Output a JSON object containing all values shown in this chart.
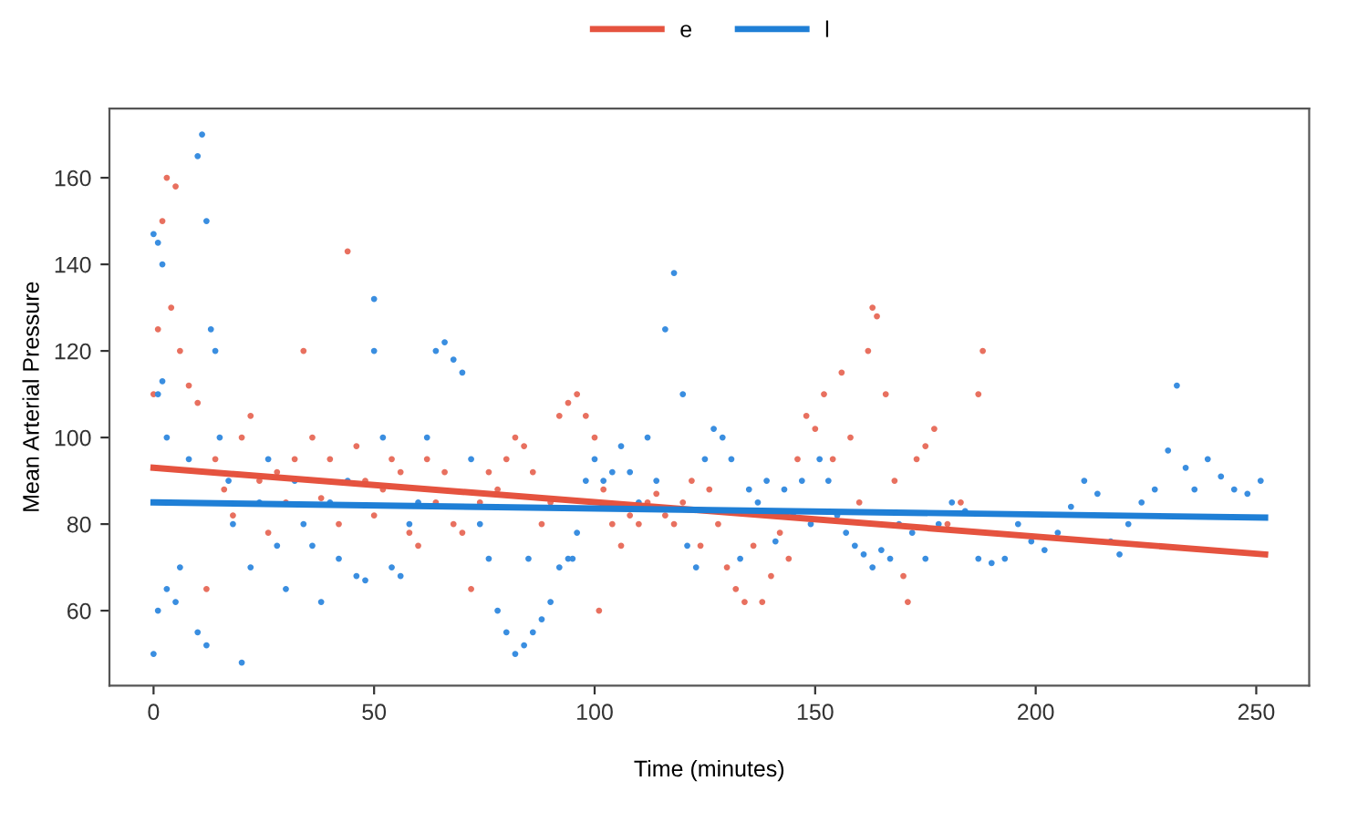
{
  "chart_data": {
    "type": "scatter",
    "xlabel": "Time (minutes)",
    "ylabel": "Mean Arterial Pressure",
    "xlim": [
      -10,
      262
    ],
    "ylim": [
      42.7,
      176
    ],
    "xticks": [
      0,
      50,
      100,
      150,
      200,
      250
    ],
    "yticks": [
      60,
      80,
      100,
      120,
      140,
      160
    ],
    "grid": false,
    "legend": "top",
    "series": [
      {
        "color": "#e8705f",
        "x": [
          0,
          1,
          2,
          3,
          5,
          4,
          6,
          8,
          10,
          12,
          14,
          16,
          18,
          20,
          22,
          24,
          26,
          28,
          30,
          32,
          34,
          36,
          38,
          40,
          42,
          44,
          46,
          48,
          50,
          52,
          54,
          56,
          58,
          60,
          62,
          64,
          66,
          68,
          70,
          72,
          74,
          76,
          78,
          80,
          82,
          84,
          86,
          88,
          90,
          92,
          94,
          96,
          98,
          100,
          101,
          102,
          104,
          106,
          108,
          110,
          112,
          114,
          116,
          118,
          120,
          122,
          124,
          126,
          128,
          130,
          132,
          134,
          136,
          138,
          140,
          142,
          144,
          146,
          148,
          150,
          152,
          154,
          156,
          158,
          160,
          162,
          163,
          164,
          166,
          168,
          170,
          171,
          173,
          175,
          177,
          180,
          183,
          187,
          188
        ],
        "values": [
          110,
          125,
          150,
          160,
          158,
          130,
          120,
          112,
          108,
          65,
          95,
          88,
          82,
          100,
          105,
          90,
          78,
          92,
          85,
          95,
          120,
          100,
          86,
          95,
          80,
          143,
          98,
          90,
          82,
          88,
          95,
          92,
          78,
          75,
          95,
          85,
          92,
          80,
          78,
          65,
          85,
          92,
          88,
          95,
          100,
          98,
          92,
          80,
          85,
          105,
          108,
          110,
          105,
          100,
          60,
          88,
          80,
          75,
          82,
          80,
          85,
          87,
          82,
          80,
          85,
          90,
          75,
          88,
          80,
          70,
          65,
          62,
          75,
          62,
          68,
          78,
          72,
          95,
          105,
          102,
          110,
          95,
          115,
          100,
          85,
          120,
          130,
          128,
          110,
          90,
          68,
          62,
          95,
          98,
          102,
          80,
          85,
          110,
          120
        ]
      },
      {
        "color": "#3a8ee0",
        "x": [
          0,
          1,
          2,
          1,
          2,
          3,
          0,
          1,
          3,
          5,
          6,
          8,
          10,
          11,
          12,
          13,
          14,
          10,
          12,
          15,
          17,
          18,
          20,
          22,
          24,
          26,
          28,
          30,
          32,
          34,
          36,
          38,
          40,
          42,
          44,
          46,
          48,
          50,
          50,
          52,
          54,
          56,
          58,
          60,
          62,
          64,
          66,
          68,
          70,
          72,
          74,
          76,
          78,
          80,
          82,
          84,
          86,
          88,
          90,
          92,
          94,
          96,
          98,
          100,
          102,
          104,
          106,
          108,
          110,
          112,
          114,
          116,
          118,
          120,
          121,
          123,
          125,
          127,
          129,
          131,
          133,
          135,
          137,
          139,
          141,
          143,
          145,
          147,
          149,
          151,
          153,
          155,
          157,
          159,
          161,
          163,
          165,
          167,
          169,
          172,
          175,
          178,
          181,
          184,
          187,
          190,
          193,
          196,
          199,
          202,
          205,
          208,
          211,
          214,
          217,
          219,
          221,
          224,
          227,
          230,
          232,
          234,
          236,
          239,
          242,
          245,
          248,
          251,
          85,
          95
        ],
        "values": [
          147,
          145,
          140,
          110,
          113,
          100,
          50,
          60,
          65,
          62,
          70,
          95,
          165,
          170,
          150,
          125,
          120,
          55,
          52,
          100,
          90,
          80,
          48,
          70,
          85,
          95,
          75,
          65,
          90,
          80,
          75,
          62,
          85,
          72,
          90,
          68,
          67,
          132,
          120,
          100,
          70,
          68,
          80,
          85,
          100,
          120,
          122,
          118,
          115,
          95,
          80,
          72,
          60,
          55,
          50,
          52,
          55,
          58,
          62,
          70,
          72,
          78,
          90,
          95,
          90,
          92,
          98,
          92,
          85,
          100,
          90,
          125,
          138,
          110,
          75,
          70,
          95,
          102,
          100,
          95,
          72,
          88,
          85,
          90,
          76,
          88,
          82,
          90,
          80,
          95,
          90,
          82,
          78,
          75,
          73,
          70,
          74,
          72,
          80,
          78,
          72,
          80,
          85,
          83,
          72,
          71,
          72,
          80,
          76,
          74,
          78,
          84,
          90,
          87,
          76,
          73,
          80,
          85,
          88,
          97,
          112,
          93,
          88,
          95,
          91,
          88,
          87,
          90,
          72,
          72
        ]
      },
      {
        "type": "line",
        "name": "e",
        "color": "#e5533f",
        "x": [
          0,
          252
        ],
        "values": [
          93,
          73
        ]
      },
      {
        "type": "line",
        "name": "l",
        "color": "#1f7fd6",
        "x": [
          0,
          252
        ],
        "values": [
          85,
          81.5
        ]
      }
    ]
  }
}
